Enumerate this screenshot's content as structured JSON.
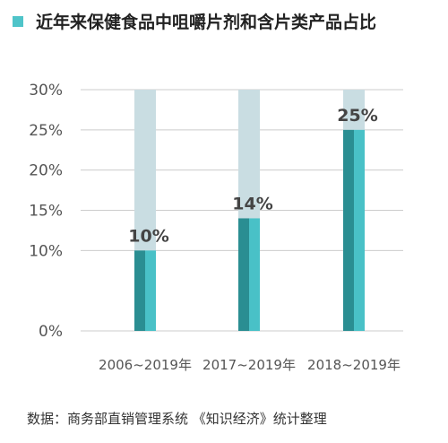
{
  "chart_data": {
    "type": "bar",
    "title": "近年来保健食品中咀嚼片剂和含片类产品占比",
    "categories": [
      "2006~2019年",
      "2017~2019年",
      "2018~2019年"
    ],
    "values": [
      10,
      14,
      25
    ],
    "value_labels": [
      "10%",
      "14%",
      "25%"
    ],
    "ylim": [
      0,
      30
    ],
    "yticks": [
      "0%",
      "10%",
      "15%",
      "20%",
      "25%",
      "30%"
    ],
    "ytick_values": [
      0,
      10,
      15,
      20,
      25,
      30
    ],
    "xlabel": "",
    "ylabel": "",
    "grid": true,
    "colors": {
      "title_square": "#4fc4c9",
      "track": "#c9dde2",
      "bar_dark": "#2a8e92",
      "bar_light": "#49c1c7",
      "axis_text": "#555555",
      "value_label": "#444444",
      "grid": "#cccccc"
    }
  },
  "footer": {
    "source": "数据：商务部直销管理系统 《知识经济》统计整理"
  }
}
